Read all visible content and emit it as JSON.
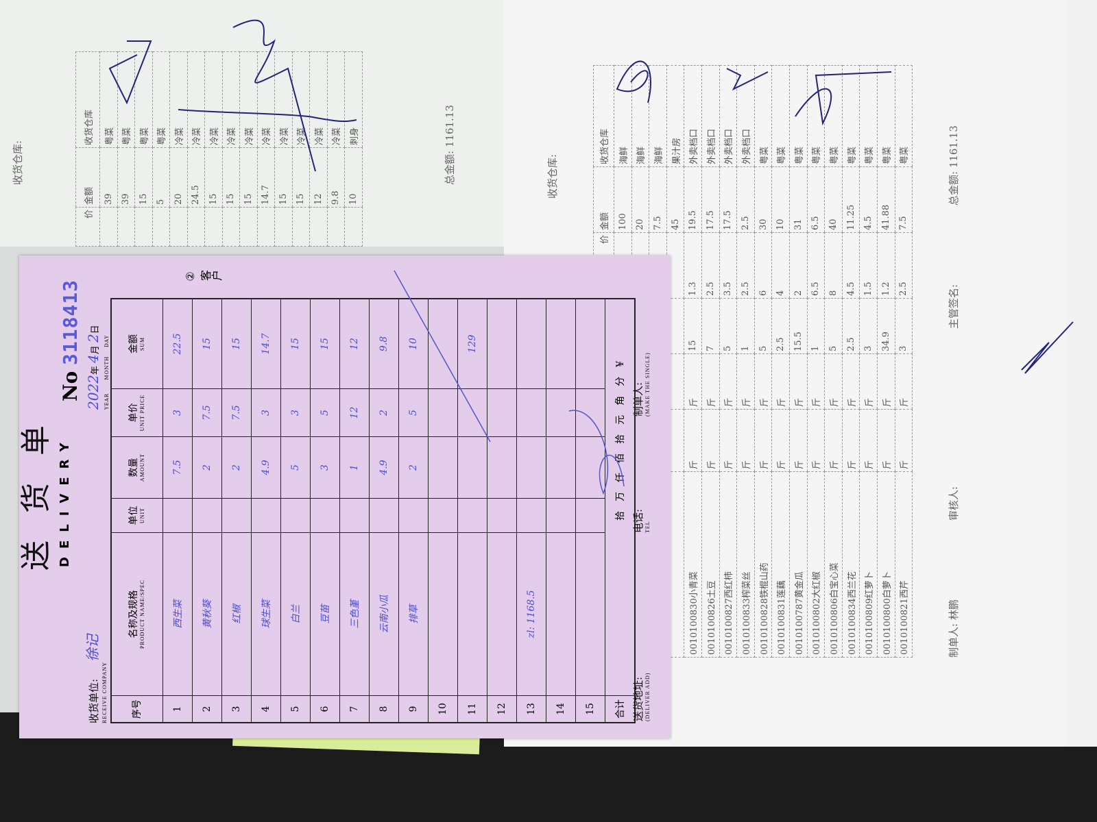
{
  "left_sheet": {
    "warehouse_label": "收货仓库:",
    "headers": {
      "price": "价",
      "amount": "金额",
      "warehouse": "收货仓库"
    },
    "rows": [
      {
        "amount": "39",
        "warehouse": "粤菜"
      },
      {
        "amount": "39",
        "warehouse": "粤菜"
      },
      {
        "amount": "15",
        "warehouse": "粤菜"
      },
      {
        "amount": "5",
        "warehouse": "粤菜"
      },
      {
        "amount": "20",
        "warehouse": "冷菜"
      },
      {
        "amount": "24.5",
        "warehouse": "冷菜"
      },
      {
        "amount": "15",
        "warehouse": "冷菜"
      },
      {
        "amount": "15",
        "warehouse": "冷菜"
      },
      {
        "amount": "15",
        "warehouse": "冷菜"
      },
      {
        "amount": "14.7",
        "warehouse": "冷菜"
      },
      {
        "amount": "15",
        "warehouse": "冷菜"
      },
      {
        "amount": "15",
        "warehouse": "冷菜"
      },
      {
        "amount": "12",
        "warehouse": "冷菜"
      },
      {
        "amount": "9.8",
        "warehouse": "冷菜"
      },
      {
        "amount": "10",
        "warehouse": "刺身"
      }
    ],
    "total_label": "总金额:",
    "total_value": "1161.13"
  },
  "right_sheet": {
    "warehouse_label": "收货仓库:",
    "headers": {
      "price": "价",
      "amount": "金额",
      "warehouse": "收货仓库"
    },
    "rows": [
      {
        "name": "",
        "unit1": "",
        "unit2": "",
        "qty": "",
        "price": "",
        "amount": "100",
        "warehouse": "海鲜"
      },
      {
        "name": "",
        "unit1": "",
        "unit2": "",
        "qty": "",
        "price": "",
        "amount": "20",
        "warehouse": "海鲜"
      },
      {
        "name": "",
        "unit1": "",
        "unit2": "",
        "qty": "",
        "price": "",
        "amount": "7.5",
        "warehouse": "海鲜"
      },
      {
        "name": "",
        "unit1": "",
        "unit2": "",
        "qty": "",
        "price": "",
        "amount": "45",
        "warehouse": "果汁房"
      },
      {
        "name": "0010100830小青菜",
        "unit1": "斤",
        "unit2": "斤",
        "qty": "15",
        "price": "1.3",
        "amount": "19.5",
        "warehouse": "外卖档口"
      },
      {
        "name": "0010100826土豆",
        "unit1": "斤",
        "unit2": "斤",
        "qty": "7",
        "price": "2.5",
        "amount": "17.5",
        "warehouse": "外卖档口"
      },
      {
        "name": "0010100827西红柿",
        "unit1": "斤",
        "unit2": "斤",
        "qty": "5",
        "price": "3.5",
        "amount": "17.5",
        "warehouse": "外卖档口"
      },
      {
        "name": "0010100833榨菜丝",
        "unit1": "斤",
        "unit2": "斤",
        "qty": "1",
        "price": "2.5",
        "amount": "2.5",
        "warehouse": "外卖档口"
      },
      {
        "name": "0010100828铁棍山药",
        "unit1": "斤",
        "unit2": "斤",
        "qty": "5",
        "price": "6",
        "amount": "30",
        "warehouse": "粤菜"
      },
      {
        "name": "0010100831莲藕",
        "unit1": "斤",
        "unit2": "斤",
        "qty": "2.5",
        "price": "4",
        "amount": "10",
        "warehouse": "粤菜"
      },
      {
        "name": "0010100787黄金瓜",
        "unit1": "斤",
        "unit2": "斤",
        "qty": "15.5",
        "price": "2",
        "amount": "31",
        "warehouse": "粤菜"
      },
      {
        "name": "0010100802大红椒",
        "unit1": "斤",
        "unit2": "斤",
        "qty": "1",
        "price": "6.5",
        "amount": "6.5",
        "warehouse": "粤菜"
      },
      {
        "name": "0010100806白宝心菜",
        "unit1": "斤",
        "unit2": "斤",
        "qty": "5",
        "price": "8",
        "amount": "40",
        "warehouse": "粤菜"
      },
      {
        "name": "0010100834西兰花",
        "unit1": "斤",
        "unit2": "斤",
        "qty": "2.5",
        "price": "4.5",
        "amount": "11.25",
        "warehouse": "粤菜"
      },
      {
        "name": "0010100809红萝卜",
        "unit1": "斤",
        "unit2": "斤",
        "qty": "3",
        "price": "1.5",
        "amount": "4.5",
        "warehouse": "粤菜"
      },
      {
        "name": "0010100800白萝卜",
        "unit1": "斤",
        "unit2": "斤",
        "qty": "34.9",
        "price": "1.2",
        "amount": "41.88",
        "warehouse": "粤菜"
      },
      {
        "name": "0010100821西芹",
        "unit1": "斤",
        "unit2": "斤",
        "qty": "3",
        "price": "2.5",
        "amount": "7.5",
        "warehouse": "粤菜"
      }
    ],
    "maker_label": "制单人:",
    "maker_value": "林鹏",
    "reviewer_label": "审核人:",
    "supervisor_label": "主管签名:",
    "total_label": "总金额:",
    "total_value": "1161.13"
  },
  "slip": {
    "title": "送货单",
    "title_en": "DELIVERY",
    "no_label": "No",
    "serial": "3118413",
    "receive_label": "收货单位:",
    "receive_label_en": "RECEIVE COMPANY",
    "receive_value": "徐记",
    "date": {
      "year": "2022",
      "year_label": "年",
      "year_en": "YEAR",
      "month": "4",
      "month_label": "月",
      "month_en": "MONTH",
      "day": "2",
      "day_label": "日",
      "day_en": "DAY"
    },
    "copy_mark": "② 客户",
    "headers": {
      "seq": "序号",
      "name": "名称及规格",
      "name_en": "PRODUCT NAME/SPEC",
      "unit": "单位",
      "unit_en": "UNIT",
      "qty": "数量",
      "qty_en": "AMOUNT",
      "price": "单价",
      "price_en": "UNIT PRICE",
      "sum": "金额",
      "sum_en": "SUM"
    },
    "rows": [
      {
        "seq": "1",
        "name": "西生菜",
        "unit": "",
        "qty": "7.5",
        "price": "3",
        "sum": "22.5"
      },
      {
        "seq": "2",
        "name": "黄秋葵",
        "unit": "",
        "qty": "2",
        "price": "7.5",
        "sum": "15"
      },
      {
        "seq": "3",
        "name": "红椒",
        "unit": "",
        "qty": "2",
        "price": "7.5",
        "sum": "15"
      },
      {
        "seq": "4",
        "name": "球生菜",
        "unit": "",
        "qty": "4.9",
        "price": "3",
        "sum": "14.7"
      },
      {
        "seq": "5",
        "name": "白兰",
        "unit": "",
        "qty": "5",
        "price": "3",
        "sum": "15"
      },
      {
        "seq": "6",
        "name": "豆苗",
        "unit": "",
        "qty": "3",
        "price": "5",
        "sum": "15"
      },
      {
        "seq": "7",
        "name": "三色堇",
        "unit": "",
        "qty": "1",
        "price": "12",
        "sum": "12"
      },
      {
        "seq": "8",
        "name": "云南小瓜",
        "unit": "",
        "qty": "4.9",
        "price": "2",
        "sum": "9.8"
      },
      {
        "seq": "9",
        "name": "排草",
        "unit": "",
        "qty": "2",
        "price": "5",
        "sum": "10"
      },
      {
        "seq": "10",
        "name": "",
        "unit": "",
        "qty": "",
        "price": "",
        "sum": ""
      },
      {
        "seq": "11",
        "name": "",
        "unit": "",
        "qty": "",
        "price": "",
        "sum": "129"
      },
      {
        "seq": "12",
        "name": "",
        "unit": "",
        "qty": "",
        "price": "",
        "sum": ""
      },
      {
        "seq": "13",
        "name": "zl: 1168.5",
        "unit": "",
        "qty": "",
        "price": "",
        "sum": ""
      },
      {
        "seq": "14",
        "name": "",
        "unit": "",
        "qty": "",
        "price": "",
        "sum": ""
      },
      {
        "seq": "15",
        "name": "",
        "unit": "",
        "qty": "",
        "price": "",
        "sum": ""
      }
    ],
    "total_label": "合计",
    "amount_words": "拾　万　仟　佰　拾　元　角　分　¥",
    "address_label": "送货地址:",
    "address_en": "(DELIVER ADD)",
    "tel_label": "电话:",
    "tel_en": "TEL",
    "maker_label": "制单人:",
    "maker_en": "(MAKE THE SINGLE)"
  },
  "colors": {
    "slip_pink": "#e3cdea",
    "ink_blue": "#4d4dd0",
    "serial_blue": "#5a5ad8"
  }
}
